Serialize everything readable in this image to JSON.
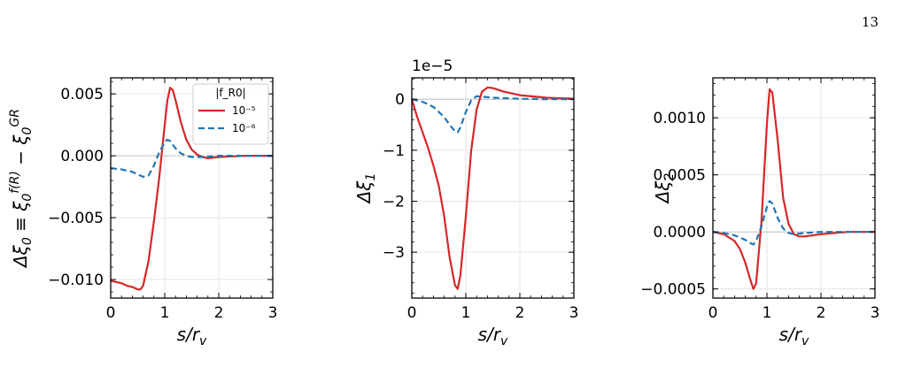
{
  "page": {
    "number": "13"
  },
  "colors": {
    "red": "#d62728",
    "blue": "#1f77b4",
    "grid": "#e6e6e6",
    "zero_line": "#888888"
  },
  "chart_data": [
    {
      "type": "line",
      "ylabel": "Δξ₀ ≡ ξ₀^f(R) − ξ₀^GR",
      "xlabel": "s/r_v",
      "xlim": [
        0,
        3
      ],
      "ylim": [
        -0.0115,
        0.0063
      ],
      "xticks": [
        0,
        1,
        2,
        3
      ],
      "xtick_labels": [
        "0",
        "1",
        "2",
        "3"
      ],
      "yticks": [
        -0.01,
        -0.005,
        0.0,
        0.005
      ],
      "ytick_labels": [
        "−0.010",
        "−0.005",
        "0.000",
        "0.005"
      ],
      "grid": true,
      "legend": {
        "title": "|f_R0|",
        "placement": "top-right",
        "entries": [
          "10⁻⁵",
          "10⁻⁶"
        ]
      },
      "series": [
        {
          "name": "10⁻⁵",
          "color": "red",
          "style": "solid",
          "x": [
            0.0,
            0.1,
            0.2,
            0.3,
            0.4,
            0.5,
            0.55,
            0.6,
            0.7,
            0.8,
            0.9,
            1.0,
            1.05,
            1.1,
            1.15,
            1.2,
            1.3,
            1.4,
            1.5,
            1.6,
            1.7,
            1.8,
            2.0,
            2.5,
            3.0
          ],
          "y": [
            -0.0101,
            -0.0102,
            -0.0103,
            -0.0105,
            -0.0106,
            -0.0108,
            -0.0108,
            -0.0105,
            -0.0085,
            -0.0053,
            -0.0017,
            0.0025,
            0.0045,
            0.0055,
            0.0053,
            0.0045,
            0.0027,
            0.0013,
            0.0005,
            0.0001,
            -0.0001,
            -0.0002,
            -0.0001,
            0.0,
            0.0
          ]
        },
        {
          "name": "10⁻⁶",
          "color": "blue",
          "style": "dashed",
          "x": [
            0.0,
            0.2,
            0.4,
            0.5,
            0.6,
            0.7,
            0.8,
            0.9,
            1.0,
            1.05,
            1.1,
            1.2,
            1.3,
            1.4,
            1.5,
            1.7,
            2.0,
            2.5,
            3.0
          ],
          "y": [
            -0.001,
            -0.0011,
            -0.0013,
            -0.0015,
            -0.0017,
            -0.0016,
            -0.0008,
            0.0003,
            0.0011,
            0.0013,
            0.0012,
            0.0006,
            0.0002,
            0.0,
            -0.0001,
            -0.0001,
            0.0,
            0.0,
            0.0
          ]
        }
      ]
    },
    {
      "type": "line",
      "ylabel": "Δξ₁",
      "xlabel": "s/r_v",
      "offset_text": "1e−5",
      "xlim": [
        0,
        3
      ],
      "ylim": [
        -3.9,
        0.42
      ],
      "xticks": [
        0,
        1,
        2,
        3
      ],
      "xtick_labels": [
        "0",
        "1",
        "2",
        "3"
      ],
      "yticks": [
        -3,
        -2,
        -1,
        0
      ],
      "ytick_labels": [
        "−3",
        "−2",
        "−1",
        "0"
      ],
      "grid": true,
      "series": [
        {
          "name": "10⁻⁵",
          "color": "red",
          "style": "solid",
          "x": [
            0.0,
            0.1,
            0.2,
            0.3,
            0.4,
            0.5,
            0.6,
            0.7,
            0.8,
            0.85,
            0.9,
            1.0,
            1.1,
            1.2,
            1.3,
            1.4,
            1.5,
            1.7,
            2.0,
            2.5,
            3.0
          ],
          "y": [
            0.0,
            -0.35,
            -0.65,
            -0.95,
            -1.3,
            -1.7,
            -2.3,
            -3.1,
            -3.65,
            -3.72,
            -3.45,
            -2.3,
            -1.0,
            -0.2,
            0.15,
            0.23,
            0.22,
            0.15,
            0.08,
            0.03,
            0.01
          ]
        },
        {
          "name": "10⁻⁶",
          "color": "blue",
          "style": "dashed",
          "x": [
            0.0,
            0.2,
            0.4,
            0.6,
            0.7,
            0.8,
            0.85,
            0.9,
            1.0,
            1.1,
            1.2,
            1.3,
            1.5,
            2.0,
            2.5,
            3.0
          ],
          "y": [
            0.0,
            -0.05,
            -0.15,
            -0.35,
            -0.5,
            -0.63,
            -0.65,
            -0.55,
            -0.25,
            -0.02,
            0.06,
            0.05,
            0.03,
            0.01,
            0.0,
            0.0
          ]
        }
      ]
    },
    {
      "type": "line",
      "ylabel": "Δξ₂",
      "xlabel": "s/r_v",
      "xlim": [
        0,
        3
      ],
      "ylim": [
        -0.00058,
        0.00135
      ],
      "xticks": [
        0,
        1,
        2,
        3
      ],
      "xtick_labels": [
        "0",
        "1",
        "2",
        "3"
      ],
      "yticks": [
        -0.0005,
        0.0,
        0.0005,
        0.001
      ],
      "ytick_labels": [
        "−0.0005",
        "0.0000",
        "0.0005",
        "0.0010"
      ],
      "grid": true,
      "series": [
        {
          "name": "10⁻⁵",
          "color": "red",
          "style": "solid",
          "x": [
            0.0,
            0.2,
            0.4,
            0.5,
            0.6,
            0.7,
            0.75,
            0.8,
            0.9,
            1.0,
            1.05,
            1.1,
            1.2,
            1.3,
            1.4,
            1.5,
            1.6,
            1.7,
            2.0,
            2.5,
            3.0
          ],
          "y": [
            0.0,
            -2e-05,
            -8e-05,
            -0.00015,
            -0.00027,
            -0.00043,
            -0.0005,
            -0.00045,
            0.0001,
            0.00095,
            0.00125,
            0.00122,
            0.0008,
            0.0003,
            7e-05,
            -2e-05,
            -4e-05,
            -4e-05,
            -2e-05,
            0.0,
            0.0
          ]
        },
        {
          "name": "10⁻⁶",
          "color": "blue",
          "style": "dashed",
          "x": [
            0.0,
            0.2,
            0.4,
            0.5,
            0.6,
            0.7,
            0.75,
            0.8,
            0.9,
            1.0,
            1.05,
            1.1,
            1.2,
            1.3,
            1.4,
            1.5,
            1.7,
            2.0,
            2.5,
            3.0
          ],
          "y": [
            0.0,
            -1e-05,
            -3e-05,
            -5e-05,
            -7e-05,
            -0.0001,
            -0.00011,
            -8e-05,
            5e-05,
            0.00022,
            0.00027,
            0.00025,
            0.00012,
            3e-05,
            -1e-05,
            -2e-05,
            -1e-05,
            0.0,
            0.0,
            0.0
          ]
        }
      ]
    }
  ]
}
